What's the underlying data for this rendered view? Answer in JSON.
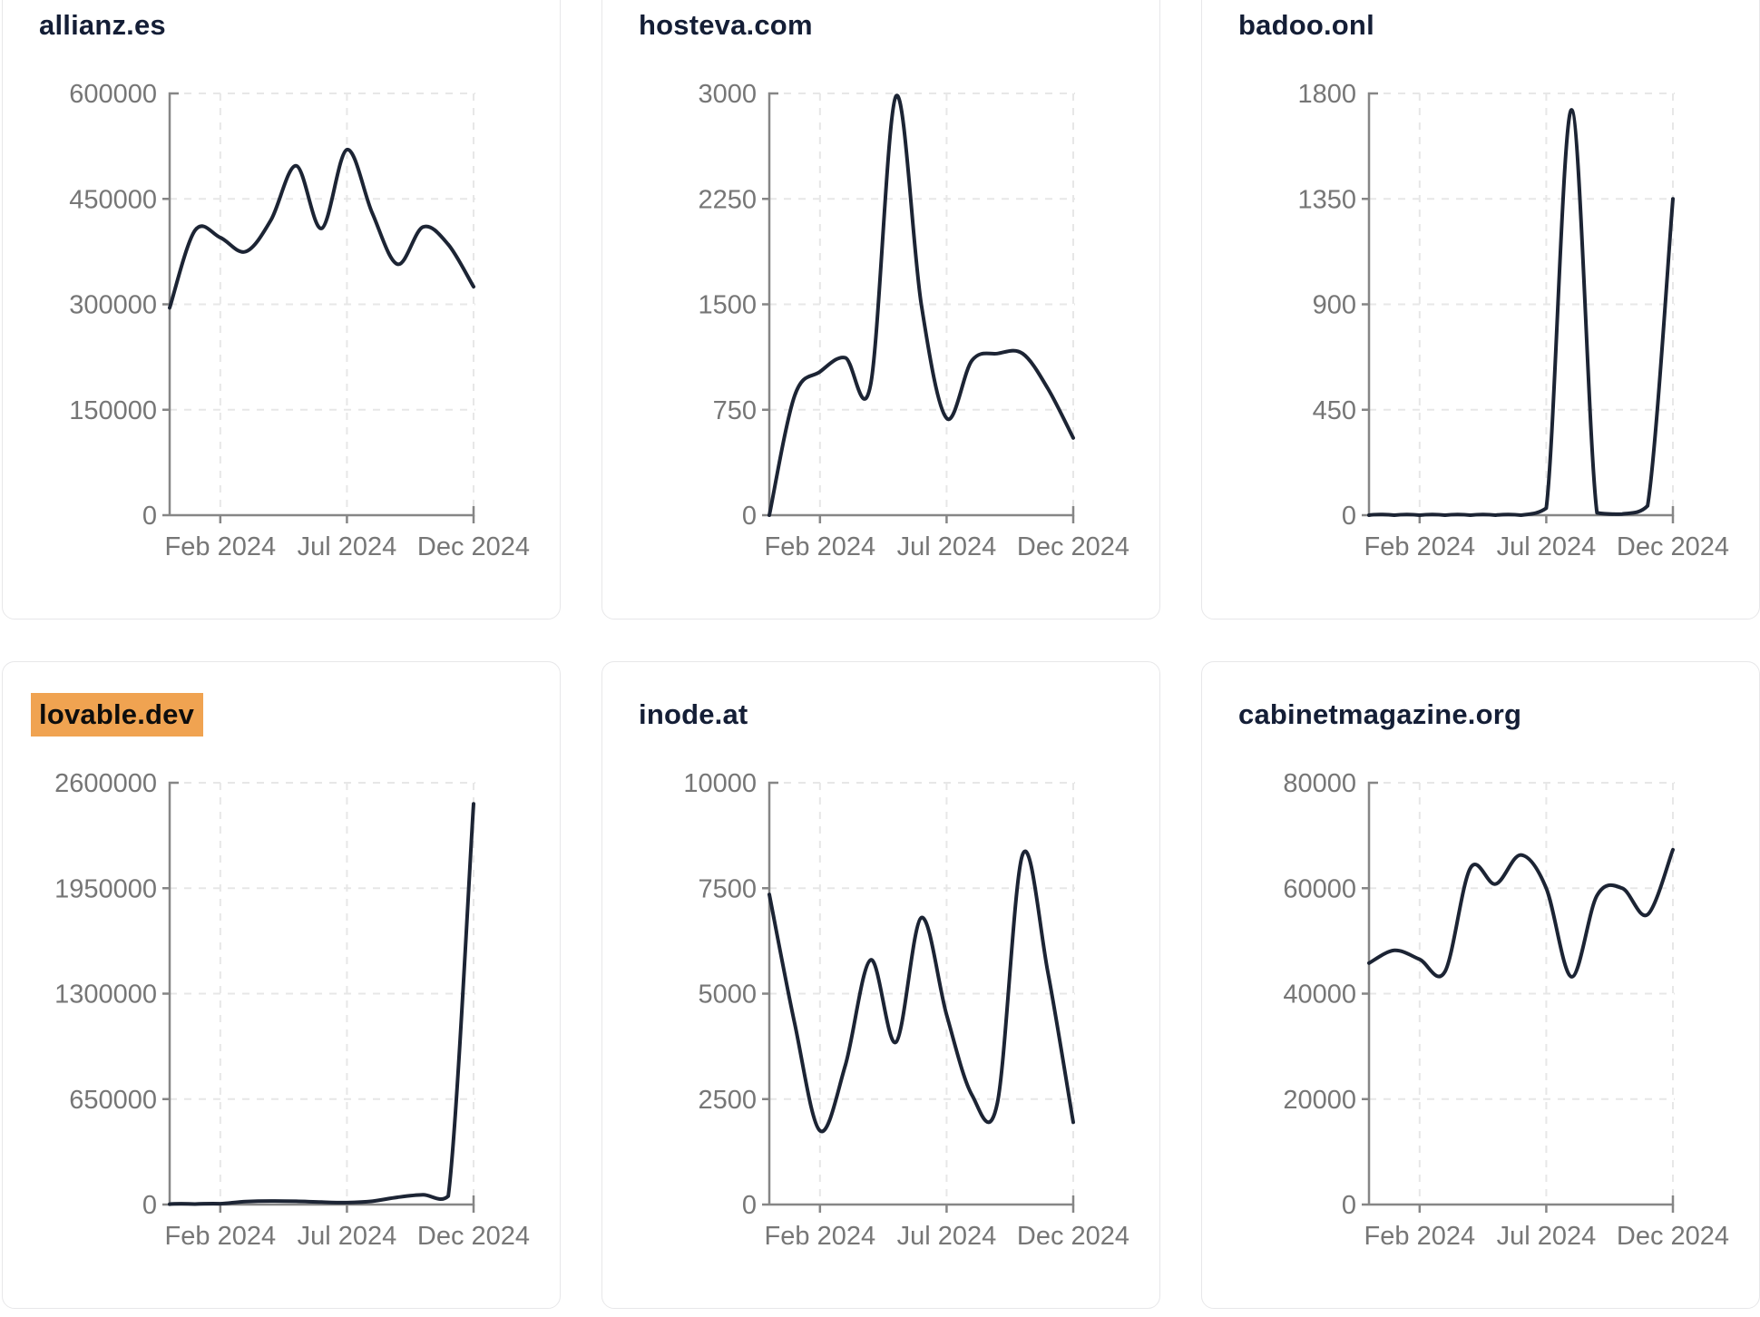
{
  "page": {
    "background": "#ffffff",
    "x_axis_tick_labels": [
      "Feb 2024",
      "Jul 2024",
      "Dec 2024"
    ],
    "x_axis_tick_month_indices": [
      2,
      7,
      12
    ]
  },
  "style": {
    "line_color": "#1c2434",
    "axis_color": "#868686",
    "grid_color": "#e7e7e7",
    "tick_label_color": "#767676",
    "title_color": "#141e36",
    "highlight_background": "#f0a351",
    "highlight_text_color": "#0d0d0d",
    "card_border_color": "#e7e7e9"
  },
  "chart_data": [
    {
      "type": "line",
      "title": "allianz.es",
      "highlighted": false,
      "x": [
        "Dec 2023",
        "Jan 2024",
        "Feb 2024",
        "Mar 2024",
        "Apr 2024",
        "May 2024",
        "Jun 2024",
        "Jul 2024",
        "Aug 2024",
        "Sep 2024",
        "Oct 2024",
        "Nov 2024",
        "Dec 2024"
      ],
      "values": [
        295000,
        405000,
        395000,
        375000,
        420000,
        497000,
        408000,
        520000,
        430000,
        357000,
        410000,
        385000,
        325000
      ],
      "ylim": [
        0,
        600000
      ],
      "yticks": [
        0,
        150000,
        300000,
        450000,
        600000
      ],
      "x_tick_labels": [
        "Feb 2024",
        "Jul 2024",
        "Dec 2024"
      ],
      "grid": true,
      "legend": "none"
    },
    {
      "type": "line",
      "title": "hosteva.com",
      "highlighted": false,
      "x": [
        "Dec 2023",
        "Jan 2024",
        "Feb 2024",
        "Mar 2024",
        "Apr 2024",
        "May 2024",
        "Jun 2024",
        "Jul 2024",
        "Aug 2024",
        "Sep 2024",
        "Oct 2024",
        "Nov 2024",
        "Dec 2024"
      ],
      "values": [
        0,
        850,
        1020,
        1120,
        930,
        2980,
        1500,
        690,
        1100,
        1150,
        1150,
        900,
        550
      ],
      "ylim": [
        0,
        3000
      ],
      "yticks": [
        0,
        750,
        1500,
        2250,
        3000
      ],
      "x_tick_labels": [
        "Feb 2024",
        "Jul 2024",
        "Dec 2024"
      ],
      "grid": true,
      "legend": "none"
    },
    {
      "type": "line",
      "title": "badoo.onl",
      "highlighted": false,
      "x": [
        "Dec 2023",
        "Jan 2024",
        "Feb 2024",
        "Mar 2024",
        "Apr 2024",
        "May 2024",
        "Jun 2024",
        "Jul 2024",
        "Aug 2024",
        "Sep 2024",
        "Oct 2024",
        "Nov 2024",
        "Dec 2024"
      ],
      "values": [
        0,
        0,
        0,
        0,
        0,
        0,
        0,
        30,
        1730,
        10,
        5,
        40,
        1350
      ],
      "ylim": [
        0,
        1800
      ],
      "yticks": [
        0,
        450,
        900,
        1350,
        1800
      ],
      "x_tick_labels": [
        "Feb 2024",
        "Jul 2024",
        "Dec 2024"
      ],
      "grid": true,
      "legend": "none"
    },
    {
      "type": "line",
      "title": "lovable.dev",
      "highlighted": true,
      "x": [
        "Dec 2023",
        "Jan 2024",
        "Feb 2024",
        "Mar 2024",
        "Apr 2024",
        "May 2024",
        "Jun 2024",
        "Jul 2024",
        "Aug 2024",
        "Sep 2024",
        "Oct 2024",
        "Nov 2024",
        "Dec 2024"
      ],
      "values": [
        2000,
        3000,
        5000,
        18000,
        22000,
        20000,
        15000,
        12000,
        20000,
        45000,
        60000,
        52000,
        2470000
      ],
      "ylim": [
        0,
        2600000
      ],
      "yticks": [
        0,
        650000,
        1300000,
        1950000,
        2600000
      ],
      "x_tick_labels": [
        "Feb 2024",
        "Jul 2024",
        "Dec 2024"
      ],
      "grid": true,
      "legend": "none"
    },
    {
      "type": "line",
      "title": "inode.at",
      "highlighted": false,
      "x": [
        "Dec 2023",
        "Jan 2024",
        "Feb 2024",
        "Mar 2024",
        "Apr 2024",
        "May 2024",
        "Jun 2024",
        "Jul 2024",
        "Aug 2024",
        "Sep 2024",
        "Oct 2024",
        "Nov 2024",
        "Dec 2024"
      ],
      "values": [
        7350,
        4300,
        1750,
        3300,
        5800,
        3850,
        6800,
        4500,
        2600,
        2400,
        8300,
        5500,
        1950
      ],
      "ylim": [
        0,
        10000
      ],
      "yticks": [
        0,
        2500,
        5000,
        7500,
        10000
      ],
      "x_tick_labels": [
        "Feb 2024",
        "Jul 2024",
        "Dec 2024"
      ],
      "grid": true,
      "legend": "none"
    },
    {
      "type": "line",
      "title": "cabinetmagazine.org",
      "highlighted": false,
      "x": [
        "Dec 2023",
        "Jan 2024",
        "Feb 2024",
        "Mar 2024",
        "Apr 2024",
        "May 2024",
        "Jun 2024",
        "Jul 2024",
        "Aug 2024",
        "Sep 2024",
        "Oct 2024",
        "Nov 2024",
        "Dec 2024"
      ],
      "values": [
        45800,
        48200,
        46500,
        44200,
        63800,
        60800,
        66300,
        60000,
        43200,
        58600,
        60000,
        55000,
        67300
      ],
      "ylim": [
        0,
        80000
      ],
      "yticks": [
        0,
        20000,
        40000,
        60000,
        80000
      ],
      "x_tick_labels": [
        "Feb 2024",
        "Jul 2024",
        "Dec 2024"
      ],
      "grid": true,
      "legend": "none"
    }
  ]
}
